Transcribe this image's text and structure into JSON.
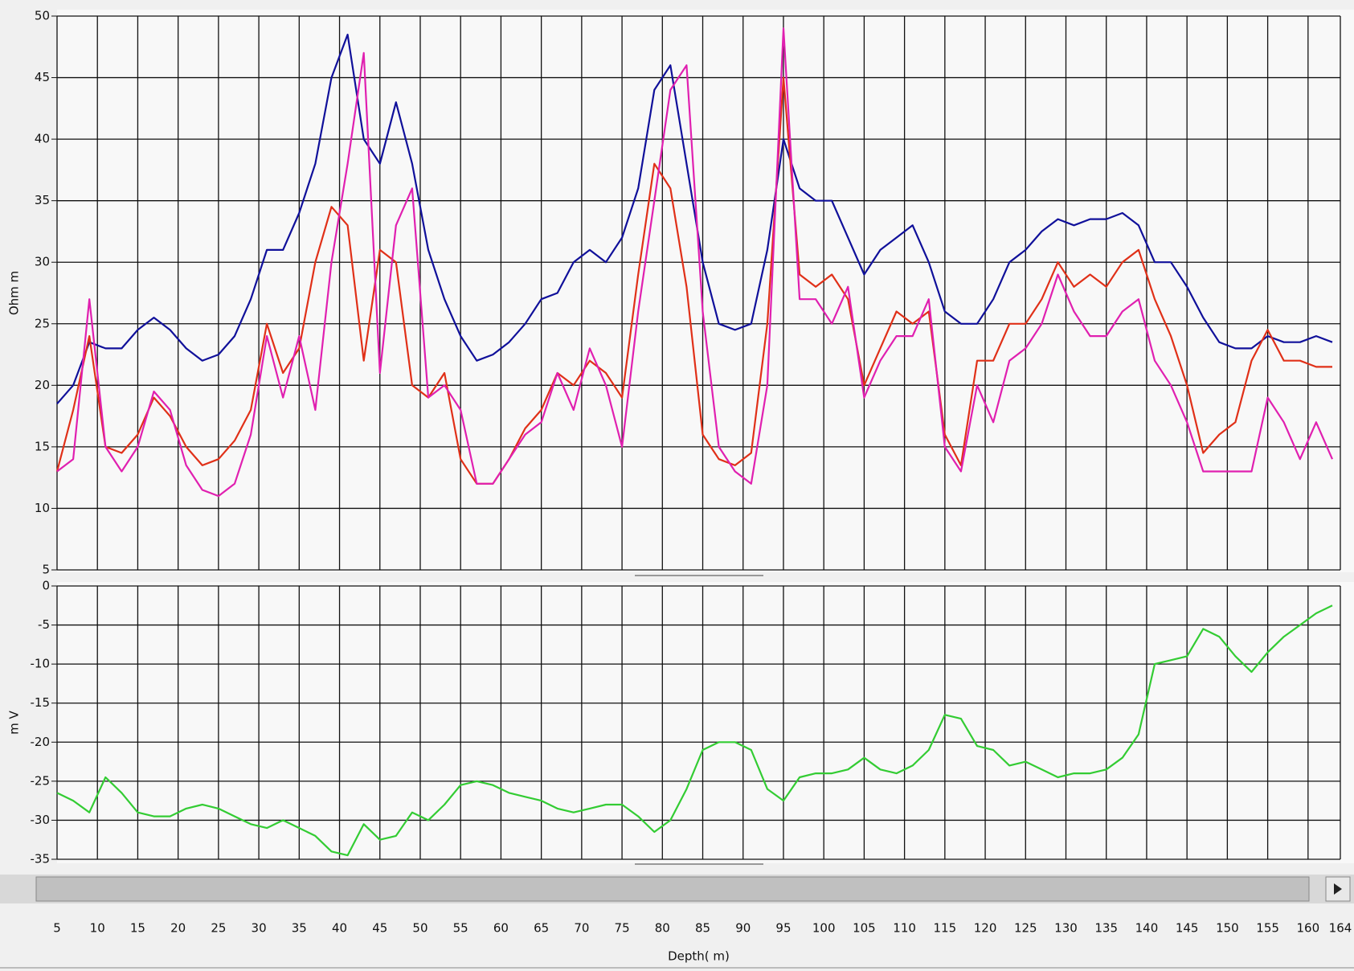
{
  "chart_data": [
    {
      "type": "line",
      "ylabel": "Ohm m",
      "xlim": [
        5,
        164
      ],
      "ylim": [
        5,
        50
      ],
      "yticks": [
        5,
        10,
        15,
        20,
        25,
        30,
        35,
        40,
        45,
        50
      ],
      "grid": true,
      "x": [
        5,
        7,
        9,
        11,
        13,
        15,
        17,
        19,
        21,
        23,
        25,
        27,
        29,
        31,
        33,
        35,
        37,
        39,
        41,
        43,
        45,
        47,
        49,
        51,
        53,
        55,
        57,
        59,
        61,
        63,
        65,
        67,
        69,
        71,
        73,
        75,
        77,
        79,
        81,
        83,
        85,
        87,
        89,
        91,
        93,
        95,
        97,
        99,
        101,
        103,
        105,
        107,
        109,
        111,
        113,
        115,
        117,
        119,
        121,
        123,
        125,
        127,
        129,
        131,
        133,
        135,
        137,
        139,
        141,
        143,
        145,
        147,
        149,
        151,
        153,
        155,
        157,
        159,
        161,
        163
      ],
      "series": [
        {
          "color": "#10109a",
          "values": [
            18.5,
            20,
            23.5,
            23,
            23,
            24.5,
            25.5,
            24.5,
            23,
            22,
            22.5,
            24,
            27,
            31,
            31,
            34,
            38,
            45,
            48.5,
            40,
            38,
            43,
            38,
            31,
            27,
            24,
            22,
            22.5,
            23.5,
            25,
            27,
            27.5,
            30,
            31,
            30,
            32,
            36,
            44,
            46,
            38,
            30,
            25,
            24.5,
            25,
            31,
            40,
            36,
            35,
            35,
            32,
            29,
            31,
            32,
            33,
            30,
            26,
            25,
            25,
            27,
            30,
            31,
            32.5,
            33.5,
            33,
            33.5,
            33.5,
            34,
            33,
            30,
            30,
            28,
            25.5,
            23.5,
            23,
            23,
            24,
            23.5,
            23.5,
            24,
            23.5
          ]
        },
        {
          "color": "#e03018",
          "values": [
            13,
            18,
            24,
            15,
            14.5,
            16,
            19,
            17.5,
            15,
            13.5,
            14,
            15.5,
            18,
            25,
            21,
            23,
            30,
            34.5,
            33,
            22,
            31,
            30,
            20,
            19,
            21,
            14,
            12,
            12,
            14,
            16.5,
            18,
            21,
            20,
            22,
            21,
            19,
            29,
            38,
            36,
            28,
            16,
            14,
            13.5,
            14.5,
            25,
            45,
            29,
            28,
            29,
            27,
            20,
            23,
            26,
            25,
            26,
            16,
            13.5,
            22,
            22,
            25,
            25,
            27,
            30,
            28,
            29,
            28,
            30,
            31,
            27,
            24,
            20,
            14.5,
            16,
            17,
            22,
            24.5,
            22,
            22,
            21.5,
            21.5
          ]
        },
        {
          "color": "#e020b0",
          "values": [
            13,
            14,
            27,
            15,
            13,
            15,
            19.5,
            18,
            13.5,
            11.5,
            11,
            12,
            16,
            24,
            19,
            24,
            18,
            30,
            38,
            47,
            21,
            33,
            36,
            19,
            20,
            18,
            12,
            12,
            14,
            16,
            17,
            21,
            18,
            23,
            20,
            15,
            26,
            35,
            44,
            46,
            26,
            15,
            13,
            12,
            20,
            49,
            27,
            27,
            25,
            28,
            19,
            22,
            24,
            24,
            27,
            15,
            13,
            20,
            17,
            22,
            23,
            25,
            29,
            26,
            24,
            24,
            26,
            27,
            22,
            20,
            17,
            13,
            13,
            13,
            13,
            19,
            17,
            14,
            17,
            14
          ]
        }
      ]
    },
    {
      "type": "line",
      "ylabel": "m V",
      "xlabel": "Depth( m)",
      "xlim": [
        5,
        164
      ],
      "xticks": [
        5,
        10,
        15,
        20,
        25,
        30,
        35,
        40,
        45,
        50,
        55,
        60,
        65,
        70,
        75,
        80,
        85,
        90,
        95,
        100,
        105,
        110,
        115,
        120,
        125,
        130,
        135,
        140,
        145,
        150,
        155,
        160,
        164
      ],
      "ylim": [
        -35,
        0
      ],
      "yticks": [
        0,
        -5,
        -10,
        -15,
        -20,
        -25,
        -30,
        -35
      ],
      "grid": true,
      "x": [
        5,
        7,
        9,
        11,
        13,
        15,
        17,
        19,
        21,
        23,
        25,
        27,
        29,
        31,
        33,
        35,
        37,
        39,
        41,
        43,
        45,
        47,
        49,
        51,
        53,
        55,
        57,
        59,
        61,
        63,
        65,
        67,
        69,
        71,
        73,
        75,
        77,
        79,
        81,
        83,
        85,
        87,
        89,
        91,
        93,
        95,
        97,
        99,
        101,
        103,
        105,
        107,
        109,
        111,
        113,
        115,
        117,
        119,
        121,
        123,
        125,
        127,
        129,
        131,
        133,
        135,
        137,
        139,
        141,
        143,
        145,
        147,
        149,
        151,
        153,
        155,
        157,
        159,
        161,
        163
      ],
      "series": [
        {
          "color": "#33cc33",
          "values": [
            -26.5,
            -27.5,
            -29,
            -24.5,
            -26.5,
            -29,
            -29.5,
            -29.5,
            -28.5,
            -28,
            -28.5,
            -29.5,
            -30.5,
            -31,
            -30,
            -31,
            -32,
            -34,
            -34.5,
            -30.5,
            -32.5,
            -32,
            -29,
            -30,
            -28,
            -25.5,
            -25,
            -25.5,
            -26.5,
            -27,
            -27.5,
            -28.5,
            -29,
            -28.5,
            -28,
            -28,
            -29.5,
            -31.5,
            -30,
            -26,
            -21,
            -20,
            -20,
            -21,
            -26,
            -27.5,
            -24.5,
            -24,
            -24,
            -23.5,
            -22,
            -23.5,
            -24,
            -23,
            -21,
            -16.5,
            -17,
            -20.5,
            -21,
            -23,
            -22.5,
            -23.5,
            -24.5,
            -24,
            -24,
            -23.5,
            -22,
            -19,
            -10,
            -9.5,
            -9,
            -5.5,
            -6.5,
            -9,
            -11,
            -8.5,
            -6.5,
            -5,
            -3.5,
            -2.5
          ]
        }
      ]
    }
  ]
}
